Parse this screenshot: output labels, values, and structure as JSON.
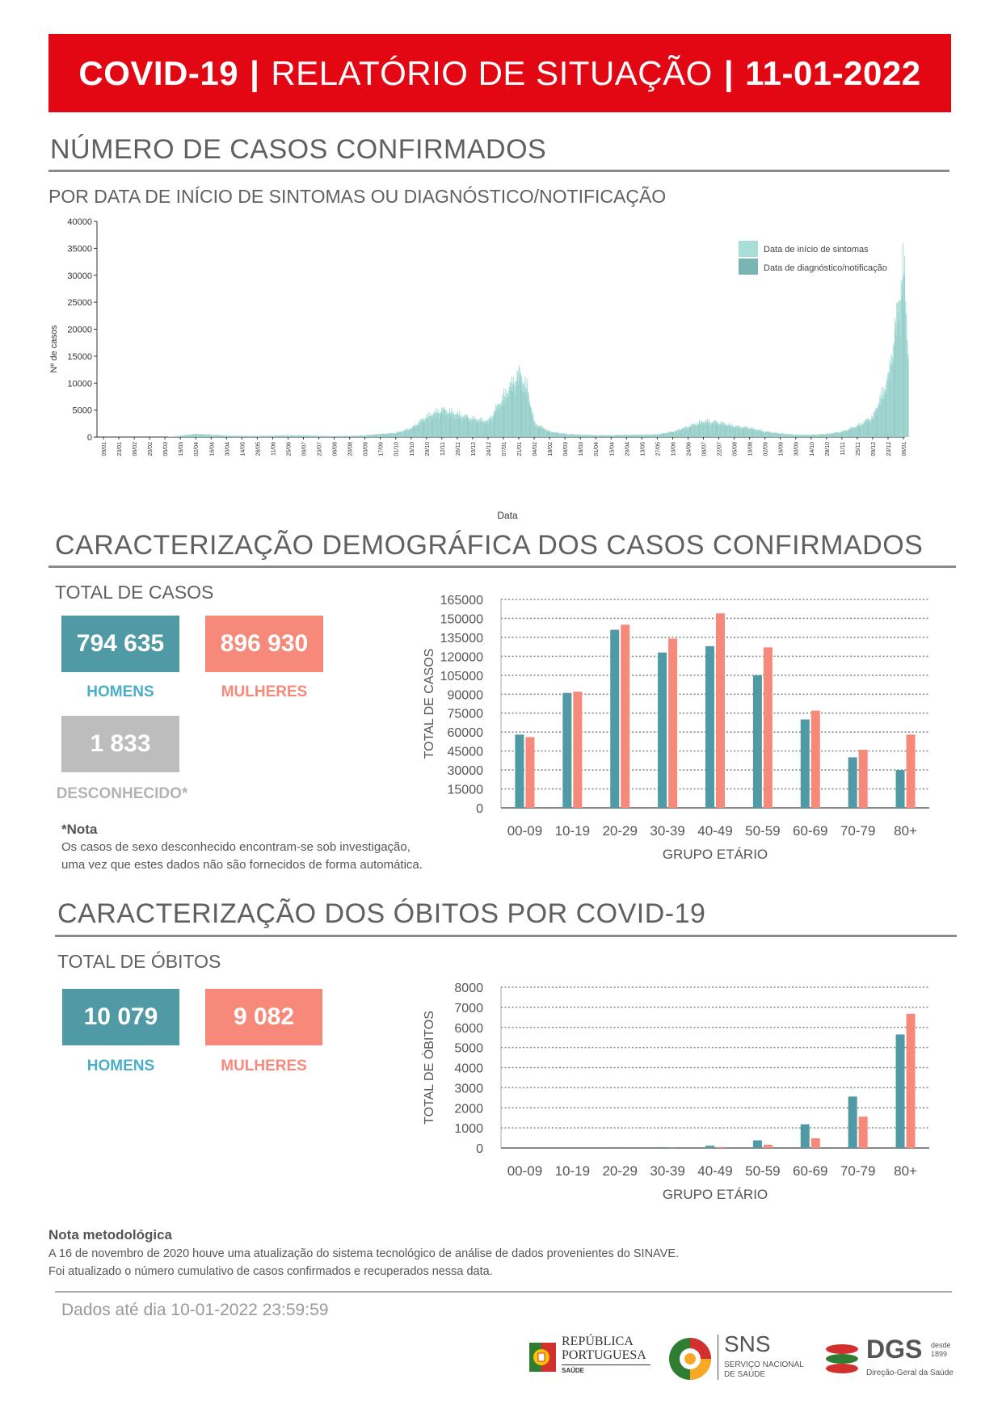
{
  "header": {
    "title_bold": "COVID-19",
    "separator": "|",
    "title_light": "RELATÓRIO DE SITUAÇÃO",
    "date": "11-01-2022"
  },
  "cases_section": {
    "title": "NÚMERO DE CASOS CONFIRMADOS",
    "subtitle": "POR DATA DE INÍCIO DE SINTOMAS OU DIAGNÓSTICO/NOTIFICAÇÃO"
  },
  "demo_section": {
    "title": "CARACTERIZAÇÃO DEMOGRÁFICA DOS CASOS CONFIRMADOS",
    "subtitle": "TOTAL DE CASOS",
    "men_value": "794 635",
    "men_label": "HOMENS",
    "women_value": "896 930",
    "women_label": "MULHERES",
    "unknown_value": "1 833",
    "unknown_label": "DESCONHECIDO*",
    "note_title": "*Nota",
    "note_line1": "Os casos de sexo desconhecido encontram-se sob investigação,",
    "note_line2": "uma vez que estes dados não são fornecidos de forma automática."
  },
  "deaths_section": {
    "title": "CARACTERIZAÇÃO DOS ÓBITOS POR COVID-19",
    "subtitle": "TOTAL DE ÓBITOS",
    "men_value": "10 079",
    "men_label": "HOMENS",
    "women_value": "9 082",
    "women_label": "MULHERES"
  },
  "method_note": {
    "title": "Nota metodológica",
    "line1": "A 16 de novembro de 2020 houve uma atualização do sistema tecnológico de análise de dados provenientes do SINAVE.",
    "line2": "Foi atualizado o número cumulativo de casos confirmados e recuperados nessa data."
  },
  "footer": {
    "data_until": "Dados até dia 10-01-2022 23:59:59",
    "logo_republica_1": "REPÚBLICA",
    "logo_republica_2": "PORTUGUESA",
    "logo_republica_3": "SAÚDE",
    "logo_sns_1": "SNS",
    "logo_sns_2": "SERVIÇO NACIONAL",
    "logo_sns_3": "DE SAÚDE",
    "logo_dgs_1": "DGS",
    "logo_dgs_2": "desde",
    "logo_dgs_3": "1899",
    "logo_dgs_4": "Direção-Geral da Saúde"
  },
  "colors": {
    "banner": "#e30613",
    "teal": "#4f9aa5",
    "salmon": "#f7897a",
    "grey": "#bdbdbd",
    "epi_light": "#a9ded8",
    "epi_dark": "#7ab5b3"
  },
  "chart_data": [
    {
      "type": "area",
      "xlabel": "Data",
      "ylabel": "Nº de casos",
      "ylim": [
        0,
        40000
      ],
      "yticks": [
        "0",
        "5000",
        "10000",
        "15000",
        "20000",
        "25000",
        "30000",
        "35000",
        "40000"
      ],
      "xticks": [
        "09/01",
        "23/01",
        "06/02",
        "20/02",
        "05/03",
        "19/03",
        "02/04",
        "16/04",
        "30/04",
        "14/05",
        "28/05",
        "11/06",
        "25/06",
        "09/07",
        "23/07",
        "06/08",
        "20/08",
        "03/09",
        "17/09",
        "01/10",
        "15/10",
        "29/10",
        "12/11",
        "26/11",
        "10/12",
        "24/12",
        "07/01",
        "21/01",
        "04/02",
        "18/02",
        "04/03",
        "18/03",
        "01/04",
        "15/04",
        "29/04",
        "13/05",
        "27/05",
        "10/06",
        "24/06",
        "08/07",
        "22/07",
        "05/08",
        "19/08",
        "02/09",
        "16/09",
        "30/09",
        "14/10",
        "28/10",
        "11/11",
        "25/11",
        "09/12",
        "23/12",
        "06/01"
      ],
      "legend": [
        "Data de início de sintomas",
        "Data de diagnóstico/notificação"
      ],
      "legend_position": "top-right",
      "series": [
        {
          "name": "Data de diagnóstico/notificação",
          "x": [
            "09/01",
            "05/03",
            "19/03",
            "02/04",
            "16/04",
            "30/04",
            "14/05",
            "28/05",
            "11/06",
            "25/06",
            "09/07",
            "23/07",
            "06/08",
            "20/08",
            "03/09",
            "17/09",
            "01/10",
            "15/10",
            "29/10",
            "12/11",
            "26/11",
            "10/12",
            "24/12",
            "07/01",
            "21/01",
            "28/01",
            "04/02",
            "18/02",
            "04/03",
            "18/03",
            "01/04",
            "15/04",
            "29/04",
            "13/05",
            "27/05",
            "10/06",
            "24/06",
            "08/07",
            "22/07",
            "05/08",
            "19/08",
            "02/09",
            "16/09",
            "30/09",
            "14/10",
            "28/10",
            "11/11",
            "25/11",
            "09/12",
            "23/12",
            "30/12",
            "06/01",
            "10/01"
          ],
          "values": [
            0,
            0,
            300,
            700,
            500,
            300,
            250,
            250,
            300,
            350,
            350,
            250,
            200,
            250,
            350,
            700,
            900,
            2000,
            4500,
            6000,
            5000,
            4000,
            3500,
            9000,
            14000,
            11000,
            3000,
            1200,
            700,
            500,
            400,
            400,
            500,
            500,
            600,
            1200,
            2300,
            3500,
            3200,
            2400,
            2000,
            1200,
            800,
            500,
            500,
            700,
            1200,
            2500,
            4500,
            13000,
            25000,
            38000,
            18000
          ]
        }
      ]
    },
    {
      "type": "bar",
      "categories": [
        "00-09",
        "10-19",
        "20-29",
        "30-39",
        "40-49",
        "50-59",
        "60-69",
        "70-79",
        "80+"
      ],
      "xlabel": "GRUPO ETÁRIO",
      "ylabel": "TOTAL DE CASOS",
      "ylim": [
        0,
        165000
      ],
      "yticks": [
        "0",
        "15000",
        "30000",
        "45000",
        "60000",
        "75000",
        "90000",
        "105000",
        "120000",
        "135000",
        "150000",
        "165000"
      ],
      "series": [
        {
          "name": "HOMENS",
          "color": "#4f9aa5",
          "values": [
            58000,
            91000,
            141000,
            123000,
            128000,
            105000,
            70000,
            40000,
            30000
          ]
        },
        {
          "name": "MULHERES",
          "color": "#f7897a",
          "values": [
            56000,
            92000,
            145000,
            134000,
            154000,
            127000,
            77000,
            46000,
            58000
          ]
        }
      ]
    },
    {
      "type": "bar",
      "categories": [
        "00-09",
        "10-19",
        "20-29",
        "30-39",
        "40-49",
        "50-59",
        "60-69",
        "70-79",
        "80+"
      ],
      "xlabel": "GRUPO ETÁRIO",
      "ylabel": "TOTAL DE ÓBITOS",
      "ylim": [
        0,
        8000
      ],
      "yticks": [
        "0",
        "1000",
        "2000",
        "3000",
        "4000",
        "5000",
        "6000",
        "7000",
        "8000"
      ],
      "series": [
        {
          "name": "HOMENS",
          "color": "#4f9aa5",
          "values": [
            2,
            3,
            10,
            30,
            110,
            380,
            1180,
            2560,
            5650
          ]
        },
        {
          "name": "MULHERES",
          "color": "#f7897a",
          "values": [
            1,
            2,
            5,
            15,
            50,
            160,
            480,
            1560,
            6680
          ]
        }
      ]
    }
  ]
}
